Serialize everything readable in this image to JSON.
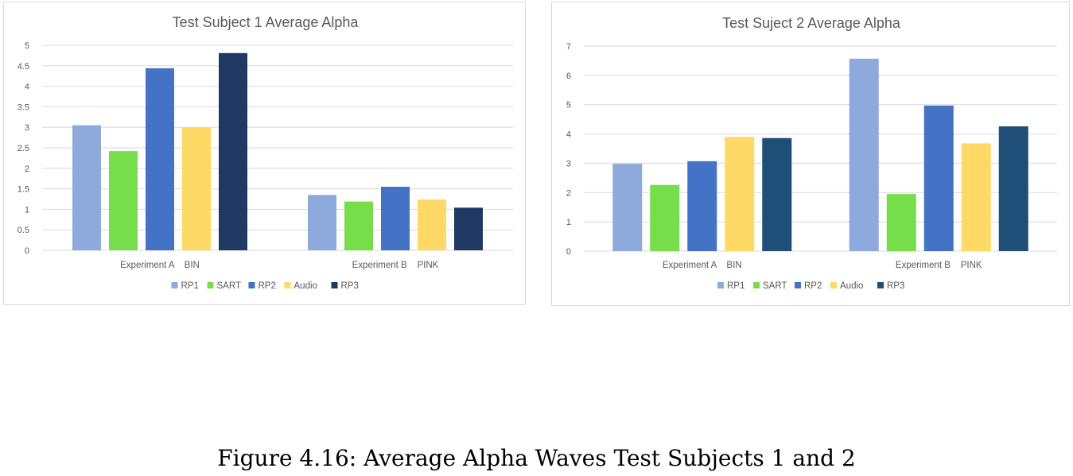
{
  "chart_data": [
    {
      "type": "bar",
      "title": "Test Subject 1 Average Alpha",
      "categories": [
        "Experiment A    BIN",
        "Experiment B    PINK"
      ],
      "ylim": [
        0,
        5
      ],
      "yticks": [
        "0",
        "0.5",
        "1",
        "1.5",
        "2",
        "2.5",
        "3",
        "3.5",
        "4",
        "4.5",
        "5"
      ],
      "ytick_values": [
        0,
        0.5,
        1,
        1.5,
        2,
        2.5,
        3,
        3.5,
        4,
        4.5,
        5
      ],
      "grid": true,
      "legend_position": "bottom",
      "series": [
        {
          "name": "RP1",
          "color": "#8ea9db",
          "values": [
            3.05,
            1.35
          ]
        },
        {
          "name": "SART",
          "color": "#77dd4b",
          "values": [
            2.42,
            1.19
          ]
        },
        {
          "name": "RP2",
          "color": "#4472c4",
          "values": [
            4.44,
            1.55
          ]
        },
        {
          "name": "Audio",
          "color": "#ffd966",
          "values": [
            3.0,
            1.24
          ]
        },
        {
          "name": "RP3",
          "color": "#203864",
          "values": [
            4.81,
            1.04
          ]
        }
      ]
    },
    {
      "type": "bar",
      "title": "Test Suject 2 Average Alpha",
      "categories": [
        "Experiment A    BIN",
        "Experiment B    PINK"
      ],
      "ylim": [
        0,
        7
      ],
      "yticks": [
        "0",
        "1",
        "2",
        "3",
        "4",
        "5",
        "6",
        "7"
      ],
      "ytick_values": [
        0,
        1,
        2,
        3,
        4,
        5,
        6,
        7
      ],
      "grid": true,
      "legend_position": "bottom",
      "series": [
        {
          "name": "RP1",
          "color": "#8ea9db",
          "values": [
            2.98,
            6.57
          ]
        },
        {
          "name": "SART",
          "color": "#77dd4b",
          "values": [
            2.26,
            1.95
          ]
        },
        {
          "name": "RP2",
          "color": "#4472c4",
          "values": [
            3.07,
            4.97
          ]
        },
        {
          "name": "Audio",
          "color": "#ffd966",
          "values": [
            3.9,
            3.68
          ]
        },
        {
          "name": "RP3",
          "color": "#1f4e79",
          "values": [
            3.86,
            4.26
          ]
        }
      ]
    }
  ],
  "caption": "Figure 4.16: Average Alpha Waves Test Subjects 1 and 2"
}
